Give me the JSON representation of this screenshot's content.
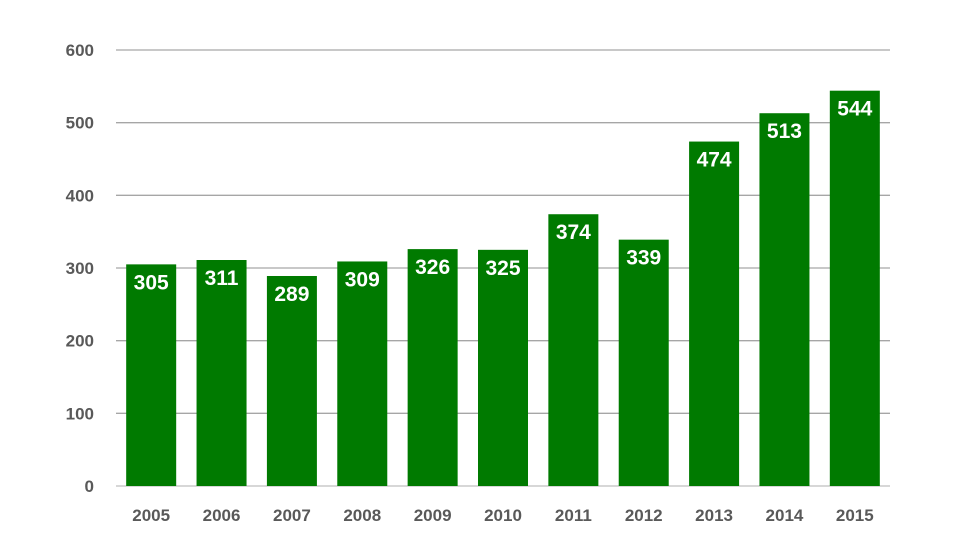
{
  "chart_data": {
    "type": "bar",
    "categories": [
      "2005",
      "2006",
      "2007",
      "2008",
      "2009",
      "2010",
      "2011",
      "2012",
      "2013",
      "2014",
      "2015"
    ],
    "values": [
      305,
      311,
      289,
      309,
      326,
      325,
      374,
      339,
      474,
      513,
      544
    ],
    "data_labels": [
      "305",
      "311",
      "289",
      "309",
      "326",
      "325",
      "374",
      "339",
      "474",
      "513",
      "544"
    ],
    "title": "",
    "xlabel": "",
    "ylabel": "",
    "ylim": [
      0,
      600
    ],
    "yticks": [
      0,
      100,
      200,
      300,
      400,
      500,
      600
    ],
    "ytick_labels": [
      "0",
      "100",
      "200",
      "300",
      "400",
      "500",
      "600"
    ],
    "grid": true,
    "legend": "none",
    "colors": {
      "bar": "#007a00",
      "grid": "#a6a6a6",
      "tick_text": "#595959",
      "data_label_text": "#ffffff"
    }
  }
}
